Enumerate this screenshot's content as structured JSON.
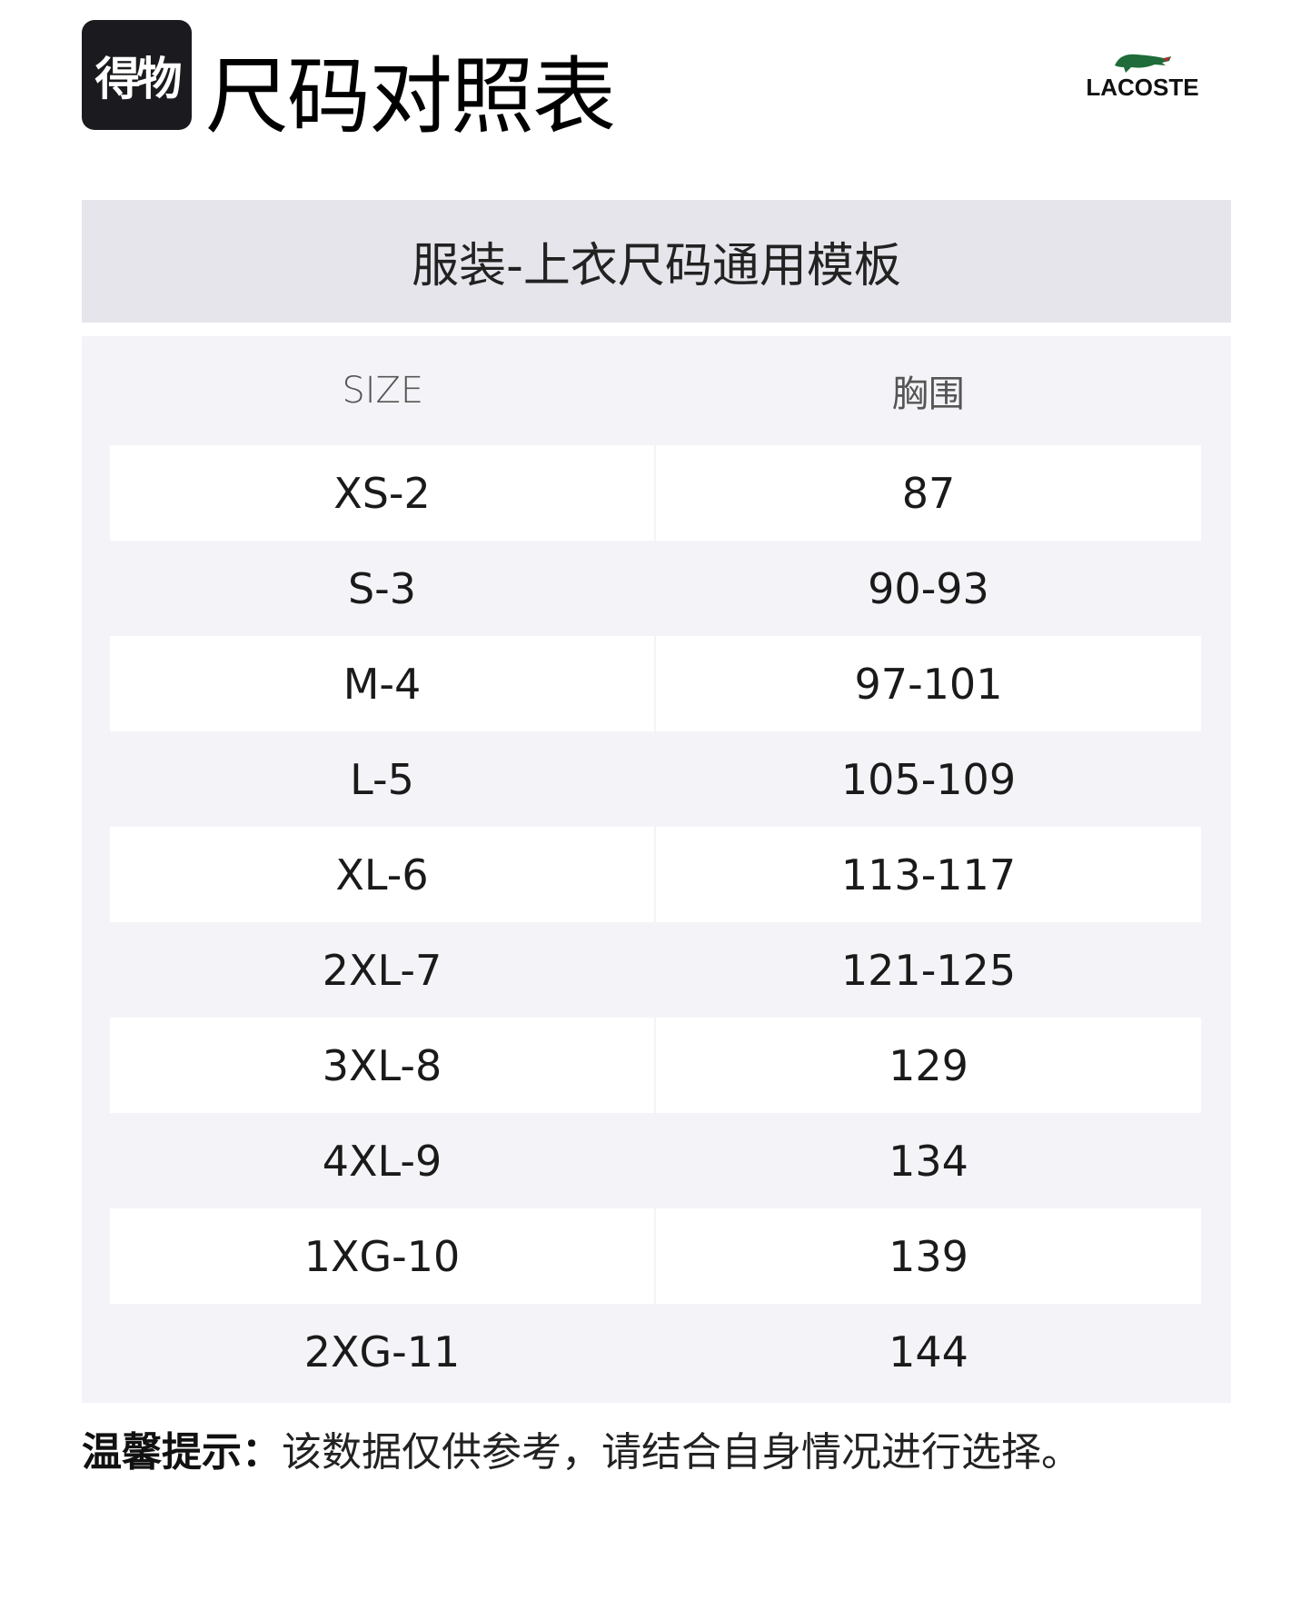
{
  "header": {
    "app_logo_text": "得物",
    "title": "尺码对照表",
    "brand": "LACOSTE"
  },
  "banner": {
    "title": "服装-上衣尺码通用模板"
  },
  "table": {
    "columns": [
      "SIZE",
      "胸围"
    ],
    "rows": [
      [
        "XS-2",
        "87"
      ],
      [
        "S-3",
        "90-93"
      ],
      [
        "M-4",
        "97-101"
      ],
      [
        "L-5",
        "105-109"
      ],
      [
        "XL-6",
        "113-117"
      ],
      [
        "2XL-7",
        "121-125"
      ],
      [
        "3XL-8",
        "129"
      ],
      [
        "4XL-9",
        "134"
      ],
      [
        "1XG-10",
        "139"
      ],
      [
        "2XG-11",
        "144"
      ]
    ]
  },
  "footer": {
    "label": "温馨提示：",
    "text": "该数据仅供参考，请结合自身情况进行选择。"
  },
  "colors": {
    "banner_bg": "#e5e5eb",
    "panel_bg": "#f4f4f8",
    "brand_green": "#1f6b3a"
  }
}
